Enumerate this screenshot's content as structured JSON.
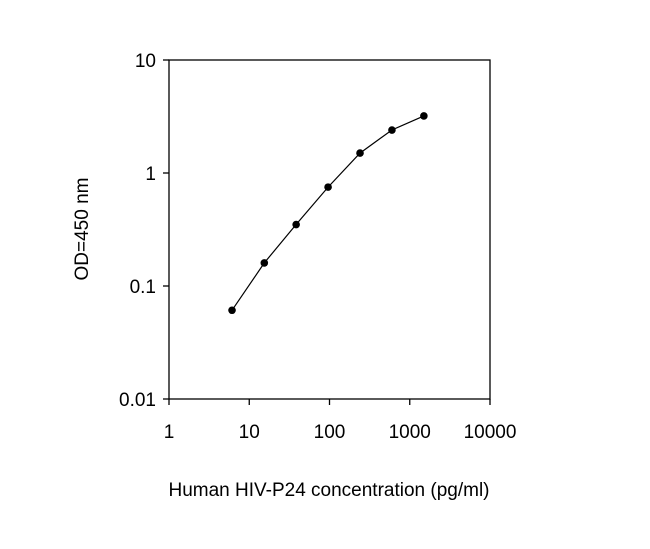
{
  "chart_data": {
    "type": "line",
    "title": "",
    "xlabel": "Human HIV-P24 concentration (pg/ml)",
    "ylabel": "OD=450 nm",
    "xscale": "log",
    "yscale": "log",
    "xlim": [
      1,
      10000
    ],
    "ylim": [
      0.01,
      10
    ],
    "xticks": [
      "1",
      "10",
      "100",
      "1000",
      "10000"
    ],
    "yticks": [
      "0.01",
      "0.1",
      "1",
      "10"
    ],
    "grid": false,
    "legend": "none",
    "line_color": "#000000",
    "marker": "filled-circle",
    "series": [
      {
        "x": [
          6.1,
          15.4,
          38.4,
          96,
          240,
          600,
          1500
        ],
        "y": [
          0.061,
          0.16,
          0.35,
          0.75,
          1.5,
          2.4,
          3.2
        ]
      }
    ]
  }
}
